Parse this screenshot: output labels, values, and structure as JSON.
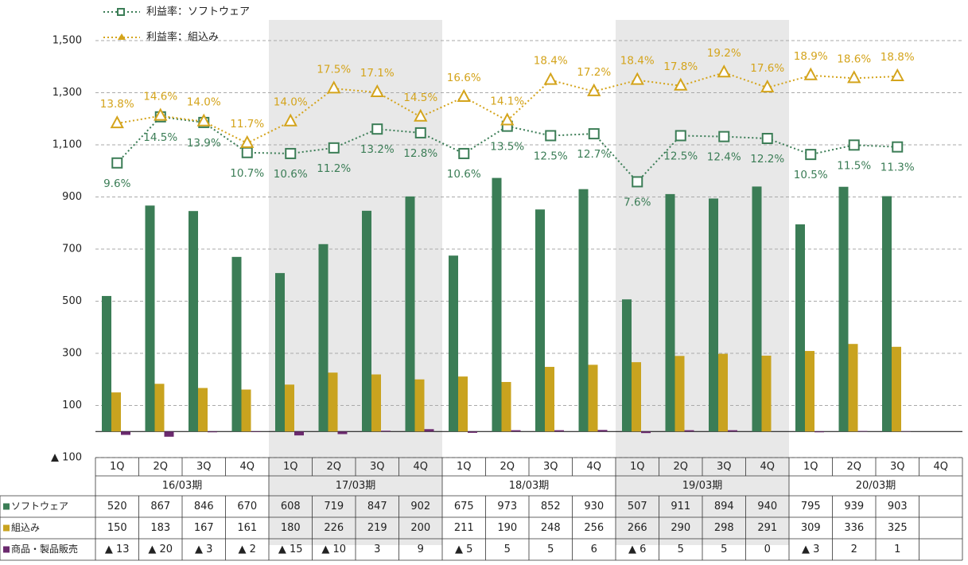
{
  "chart_data": {
    "type": "bar",
    "categories": [
      "1Q",
      "2Q",
      "3Q",
      "4Q",
      "1Q",
      "2Q",
      "3Q",
      "4Q",
      "1Q",
      "2Q",
      "3Q",
      "4Q",
      "1Q",
      "2Q",
      "3Q",
      "4Q",
      "1Q",
      "2Q",
      "3Q",
      "4Q"
    ],
    "groups": [
      "16/03期",
      "17/03期",
      "18/03期",
      "19/03期",
      "20/03期"
    ],
    "ylim": [
      -100,
      1500
    ],
    "yticks": [
      {
        "value": -100,
        "label": "▲ 100"
      },
      100,
      300,
      500,
      700,
      900,
      {
        "value": 1100,
        "label": "1,100"
      },
      {
        "value": 1300,
        "label": "1,300"
      },
      {
        "value": 1500,
        "label": "1,500"
      }
    ],
    "y2lim": [
      -21.7,
      22.6
    ],
    "grid": true,
    "series": [
      {
        "name": "ソフトウェア",
        "type": "bar",
        "color": "#3b7d56",
        "values": [
          520,
          867,
          846,
          670,
          608,
          719,
          847,
          902,
          675,
          973,
          852,
          930,
          507,
          911,
          894,
          940,
          795,
          939,
          903,
          null
        ]
      },
      {
        "name": "組込み",
        "type": "bar",
        "color": "#c9a31f",
        "values": [
          150,
          183,
          167,
          161,
          180,
          226,
          219,
          200,
          211,
          190,
          248,
          256,
          266,
          290,
          298,
          291,
          309,
          336,
          325,
          null
        ]
      },
      {
        "name": "商品・製品販売",
        "type": "bar",
        "color": "#6b2a6e",
        "values": [
          -13,
          -20,
          -3,
          -2,
          -15,
          -10,
          3,
          9,
          -5,
          5,
          5,
          6,
          -6,
          5,
          5,
          0,
          -3,
          2,
          1,
          null
        ],
        "value_labels": [
          "▲ 13",
          "▲ 20",
          "▲ 3",
          "▲ 2",
          "▲ 15",
          "▲ 10",
          "3",
          "9",
          "▲ 5",
          "5",
          "5",
          "6",
          "▲ 6",
          "5",
          "5",
          "0",
          "▲ 3",
          "2",
          "1",
          null
        ]
      },
      {
        "name": "利益率：ソフトウェア",
        "type": "line",
        "axis": "y2",
        "marker": "square",
        "color": "#3b7d56",
        "values": [
          9.6,
          14.5,
          13.9,
          10.7,
          10.6,
          11.2,
          13.2,
          12.8,
          10.6,
          13.5,
          12.5,
          12.7,
          7.6,
          12.5,
          12.4,
          12.2,
          10.5,
          11.5,
          11.3,
          null
        ],
        "value_labels": [
          "9.6%",
          "14.5%",
          "13.9%",
          "10.7%",
          "10.6%",
          "11.2%",
          "13.2%",
          "12.8%",
          "10.6%",
          "13.5%",
          "12.5%",
          "12.7%",
          "7.6%",
          "12.5%",
          "12.4%",
          "12.2%",
          "10.5%",
          "11.5%",
          "11.3%",
          null
        ]
      },
      {
        "name": "利益率：組込み",
        "type": "line",
        "axis": "y2",
        "marker": "triangle",
        "color": "#d4a41c",
        "values": [
          13.8,
          14.6,
          14.0,
          11.7,
          14.0,
          17.5,
          17.1,
          14.5,
          16.6,
          14.1,
          18.4,
          17.2,
          18.4,
          17.8,
          19.2,
          17.6,
          18.9,
          18.6,
          18.8,
          null
        ],
        "value_labels": [
          "13.8%",
          "14.6%",
          "14.0%",
          "11.7%",
          "14.0%",
          "17.5%",
          "17.1%",
          "14.5%",
          "16.6%",
          "14.1%",
          "18.4%",
          "17.2%",
          "18.4%",
          "17.8%",
          "19.2%",
          "17.6%",
          "18.9%",
          "18.6%",
          "18.8%",
          null
        ]
      }
    ]
  }
}
